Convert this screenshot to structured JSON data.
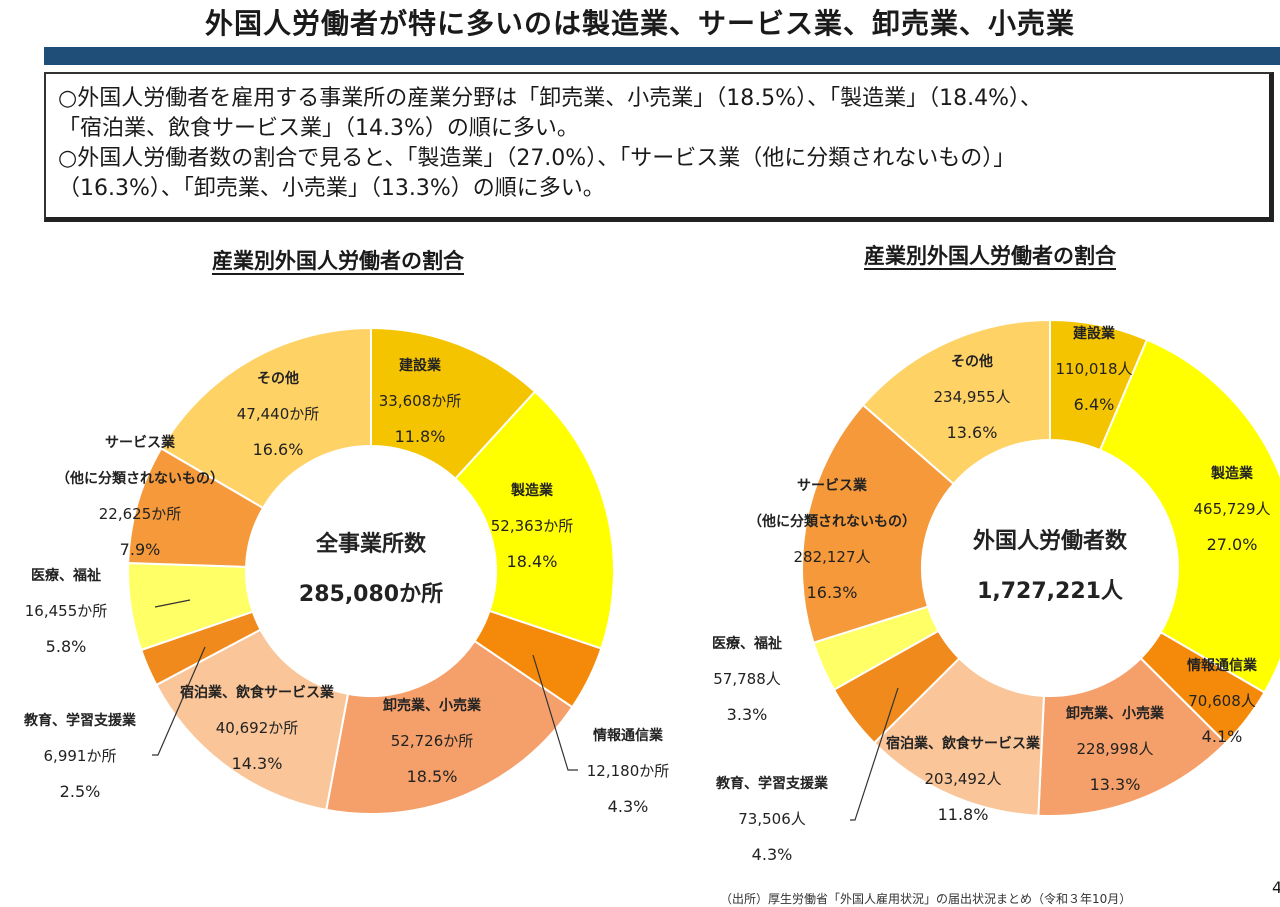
{
  "header": {
    "title": "外国人労働者が特に多いのは製造業、サービス業、卸売業、小売業"
  },
  "summary": {
    "lines": [
      "○外国人労働者を雇用する事業所の産業分野は「卸売業、小売業」（18.5%）、「製造業」（18.4%）、",
      "「宿泊業、飲食サービス業」（14.3%）の順に多い。",
      "○外国人労働者数の割合で見ると、「製造業」（27.0%）、「サービス業（他に分類されないもの）」",
      "（16.3%）、「卸売業、小売業」（13.3%）の順に多い。"
    ]
  },
  "colors": {
    "建設業": "#f5c400",
    "製造業": "#ffff00",
    "情報通信業": "#f58a0a",
    "卸売業、小売業": "#f5a06a",
    "宿泊業、飲食サービス業": "#fac598",
    "教育、学習支援業": "#f08a1c",
    "医療、福祉": "#ffff66",
    "サービス業": "#f5993a",
    "その他": "#ffd266",
    "title_bar": "#1f4e79"
  },
  "chart_data": [
    {
      "type": "pie",
      "title": "産業別外国人労働者の割合",
      "center_label": "全事業所数",
      "center_value": "285,080か所",
      "unit": "か所",
      "slices": [
        {
          "name": "建設業",
          "value": "33,608",
          "percent": 11.8
        },
        {
          "name": "製造業",
          "value": "52,363",
          "percent": 18.4
        },
        {
          "name": "情報通信業",
          "value": "12,180",
          "percent": 4.3
        },
        {
          "name": "卸売業、小売業",
          "value": "52,726",
          "percent": 18.5
        },
        {
          "name": "宿泊業、飲食サービス業",
          "value": "40,692",
          "percent": 14.3
        },
        {
          "name": "教育、学習支援業",
          "value": "6,991",
          "percent": 2.5
        },
        {
          "name": "医療、福祉",
          "value": "16,455",
          "percent": 5.8
        },
        {
          "name": "サービス業",
          "name2": "（他に分類されないもの）",
          "value": "22,625",
          "percent": 7.9
        },
        {
          "name": "その他",
          "value": "47,440",
          "percent": 16.6
        }
      ]
    },
    {
      "type": "pie",
      "title": "産業別外国人労働者の割合",
      "center_label": "外国人労働者数",
      "center_value": "1,727,221人",
      "unit": "人",
      "slices": [
        {
          "name": "建設業",
          "value": "110,018",
          "percent": 6.4
        },
        {
          "name": "製造業",
          "value": "465,729",
          "percent": 27.0
        },
        {
          "name": "情報通信業",
          "value": "70,608",
          "percent": 4.1
        },
        {
          "name": "卸売業、小売業",
          "value": "228,998",
          "percent": 13.3
        },
        {
          "name": "宿泊業、飲食サービス業",
          "value": "203,492",
          "percent": 11.8
        },
        {
          "name": "教育、学習支援業",
          "value": "73,506",
          "percent": 4.3
        },
        {
          "name": "医療、福祉",
          "value": "57,788",
          "percent": 3.3
        },
        {
          "name": "サービス業",
          "name2": "（他に分類されないもの）",
          "value": "282,127",
          "percent": 16.3
        },
        {
          "name": "その他",
          "value": "234,955",
          "percent": 13.6
        }
      ]
    }
  ],
  "footer": {
    "source": "（出所）厚生労働省「外国人雇用状況」の届出状況まとめ（令和３年10月）",
    "page_number": "4"
  }
}
